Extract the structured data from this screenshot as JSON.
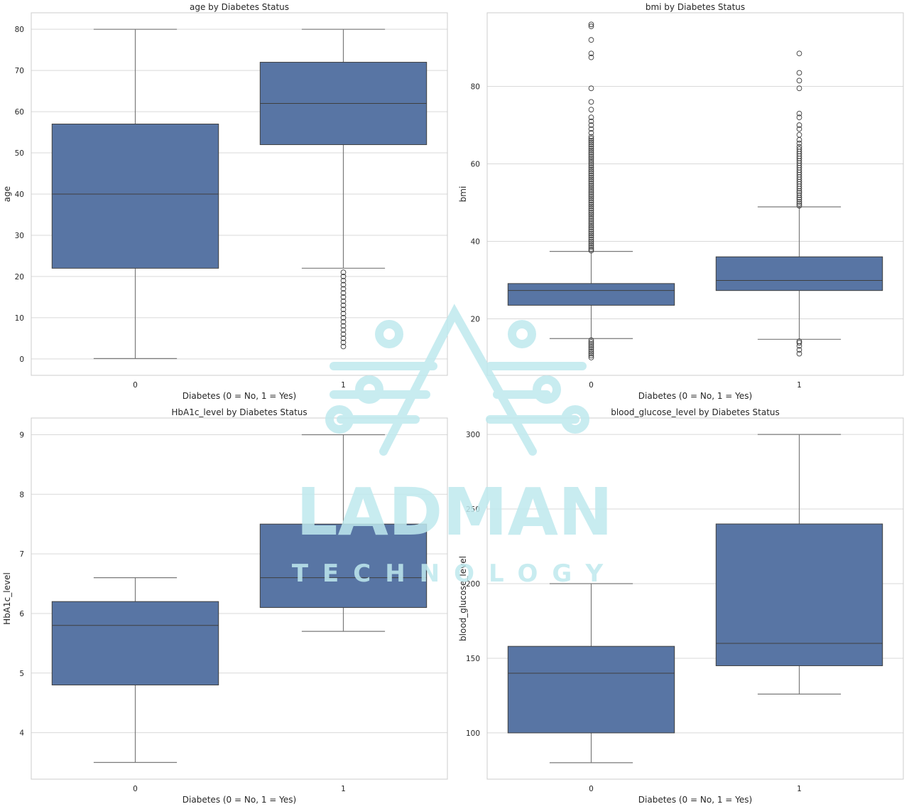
{
  "watermark": {
    "name": "LADMAN",
    "subtitle": "TECHNOLOGY",
    "color": "#bfe9ee"
  },
  "box_color": "#5875a4",
  "chart_data": [
    {
      "type": "box",
      "title": "age by Diabetes Status",
      "xlabel": "Diabetes (0 = No, 1 = Yes)",
      "ylabel": "age",
      "categories": [
        "0",
        "1"
      ],
      "ylim": [
        -4,
        84
      ],
      "yticks": [
        0,
        10,
        20,
        30,
        40,
        50,
        60,
        70,
        80
      ],
      "boxes": [
        {
          "category": "0",
          "whisker_low": 0.08,
          "q1": 22,
          "median": 40,
          "q3": 57,
          "whisker_high": 80,
          "outliers": []
        },
        {
          "category": "1",
          "whisker_low": 22,
          "q1": 52,
          "median": 62,
          "q3": 72,
          "whisker_high": 80,
          "outliers": [
            3,
            4,
            5,
            6,
            7,
            8,
            9,
            10,
            11,
            12,
            13,
            14,
            15,
            16,
            17,
            18,
            19,
            20,
            21
          ]
        }
      ]
    },
    {
      "type": "box",
      "title": "bmi by Diabetes Status",
      "xlabel": "Diabetes (0 = No, 1 = Yes)",
      "ylabel": "bmi",
      "categories": [
        "0",
        "1"
      ],
      "ylim": [
        5.4,
        99
      ],
      "yticks": [
        20,
        40,
        60,
        80
      ],
      "boxes": [
        {
          "category": "0",
          "whisker_low": 14.9,
          "q1": 23.5,
          "median": 27.3,
          "q3": 29.1,
          "whisker_high": 37.4,
          "outliers": [
            10,
            10.5,
            11,
            11.5,
            12,
            12.5,
            13,
            13.5,
            14,
            14.5,
            37.6,
            38,
            38.5,
            39,
            39.5,
            40,
            40.5,
            41,
            41.5,
            42,
            42.5,
            43,
            43.5,
            44,
            44.5,
            45,
            45.5,
            46,
            46.5,
            47,
            47.5,
            48,
            48.5,
            49,
            49.5,
            50,
            50.5,
            51,
            51.5,
            52,
            52.5,
            53,
            53.5,
            54,
            54.5,
            55,
            55.5,
            56,
            56.5,
            57,
            57.5,
            58,
            58.5,
            59,
            59.5,
            60,
            60.5,
            61,
            61.5,
            62,
            62.5,
            63,
            63.5,
            64,
            64.5,
            65,
            65.5,
            66,
            66.5,
            67,
            68,
            69,
            70,
            71,
            72,
            74,
            76,
            79.5,
            87.5,
            88.5,
            92,
            95.5,
            96
          ]
        },
        {
          "category": "1",
          "whisker_low": 14.7,
          "q1": 27.3,
          "median": 29.9,
          "q3": 36,
          "whisker_high": 48.9,
          "outliers": [
            11,
            12,
            13,
            13.8,
            14.2,
            49.2,
            49.7,
            50.2,
            50.8,
            51.3,
            51.9,
            52.5,
            53,
            53.6,
            54.2,
            54.8,
            55.4,
            56,
            56.6,
            57.2,
            57.8,
            58.4,
            59,
            59.6,
            60.2,
            60.8,
            61.4,
            62,
            62.6,
            63.2,
            63.8,
            64.4,
            65.3,
            66.2,
            67.5,
            69,
            70,
            72,
            73,
            79.5,
            81.5,
            83.5,
            88.5
          ]
        }
      ]
    },
    {
      "type": "box",
      "title": "HbA1c_level by Diabetes Status",
      "xlabel": "Diabetes (0 = No, 1 = Yes)",
      "ylabel": "HbA1c_level",
      "categories": [
        "0",
        "1"
      ],
      "ylim": [
        3.22,
        9.28
      ],
      "yticks": [
        4,
        5,
        6,
        7,
        8,
        9
      ],
      "boxes": [
        {
          "category": "0",
          "whisker_low": 3.5,
          "q1": 4.8,
          "median": 5.8,
          "q3": 6.2,
          "whisker_high": 6.6,
          "outliers": []
        },
        {
          "category": "1",
          "whisker_low": 5.7,
          "q1": 6.1,
          "median": 6.6,
          "q3": 7.5,
          "whisker_high": 9.0,
          "outliers": []
        }
      ]
    },
    {
      "type": "box",
      "title": "blood_glucose_level by Diabetes Status",
      "xlabel": "Diabetes (0 = No, 1 = Yes)",
      "ylabel": "blood_glucose_level",
      "categories": [
        "0",
        "1"
      ],
      "ylim": [
        69,
        311
      ],
      "yticks": [
        100,
        150,
        200,
        250,
        300
      ],
      "boxes": [
        {
          "category": "0",
          "whisker_low": 80,
          "q1": 100,
          "median": 140,
          "q3": 158,
          "whisker_high": 200,
          "outliers": []
        },
        {
          "category": "1",
          "whisker_low": 126,
          "q1": 145,
          "median": 160,
          "q3": 240,
          "whisker_high": 300,
          "outliers": []
        }
      ]
    }
  ]
}
